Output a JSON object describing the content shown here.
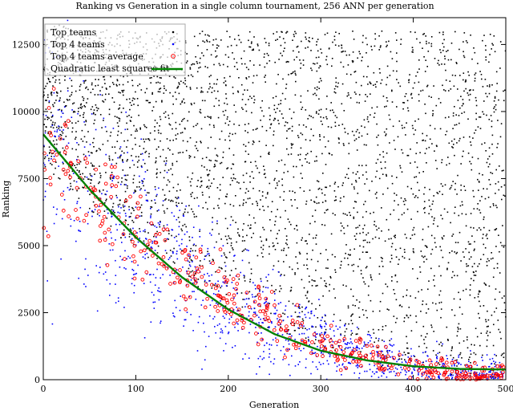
{
  "chart_data": {
    "type": "scatter",
    "title": "Ranking vs Generation in a single column tournament, 256 ANN per generation",
    "xlabel": "Generation",
    "ylabel": "Ranking",
    "xlim": [
      0,
      500
    ],
    "ylim": [
      0,
      13500
    ],
    "xticks": [
      0,
      100,
      200,
      300,
      400,
      500
    ],
    "yticks": [
      0,
      2500,
      5000,
      7500,
      10000,
      12500
    ],
    "xtick_labels": [
      "0",
      "100",
      "200",
      "300",
      "400",
      "500"
    ],
    "ytick_labels": [
      "0",
      "2500",
      "5000",
      "7500",
      "10000",
      "12500"
    ],
    "grid": false,
    "legend_position": "top-left",
    "series": [
      {
        "name": "Top teams",
        "marker": "dot",
        "color": "#000000",
        "note": "dense cloud over ranks 0-13300; upper envelope near 13000 across all generations, lower envelope decreasing with generation",
        "x": [
          5,
          20,
          40,
          60,
          80,
          100,
          130,
          160,
          200,
          250,
          300,
          350,
          400,
          450,
          500
        ],
        "y_lower": [
          7800,
          7400,
          6700,
          6000,
          5300,
          4800,
          4200,
          3500,
          2600,
          1800,
          1200,
          600,
          200,
          0,
          0
        ],
        "y_upper": [
          13300,
          13200,
          13100,
          13100,
          13000,
          13000,
          13000,
          13000,
          13000,
          13000,
          13000,
          13000,
          13000,
          13000,
          13000
        ]
      },
      {
        "name": "Top 4 teams",
        "marker": "dot",
        "color": "#0000ff",
        "note": "scattered below the black cloud, centred on the fit with wide spread",
        "x": [
          5,
          50,
          100,
          150,
          200,
          250,
          300,
          350,
          400,
          450,
          500
        ],
        "y_center": [
          8600,
          7000,
          5500,
          4200,
          3100,
          2200,
          1400,
          900,
          500,
          250,
          150
        ]
      },
      {
        "name": "Top 4 teams average",
        "marker": "open-circle",
        "color": "#ff0000",
        "x": [
          5,
          50,
          100,
          150,
          200,
          250,
          300,
          350,
          400,
          450,
          500
        ],
        "y_center": [
          8400,
          6900,
          5400,
          4100,
          3000,
          2200,
          1400,
          900,
          500,
          250,
          200
        ]
      },
      {
        "name": "Quadratic least squares fit",
        "marker": "line",
        "color": "#008000",
        "x": [
          0,
          50,
          100,
          150,
          200,
          250,
          300,
          350,
          400,
          450,
          500
        ],
        "y": [
          9150,
          7090,
          5310,
          3820,
          2620,
          1700,
          1080,
          720,
          500,
          400,
          380
        ]
      }
    ]
  }
}
